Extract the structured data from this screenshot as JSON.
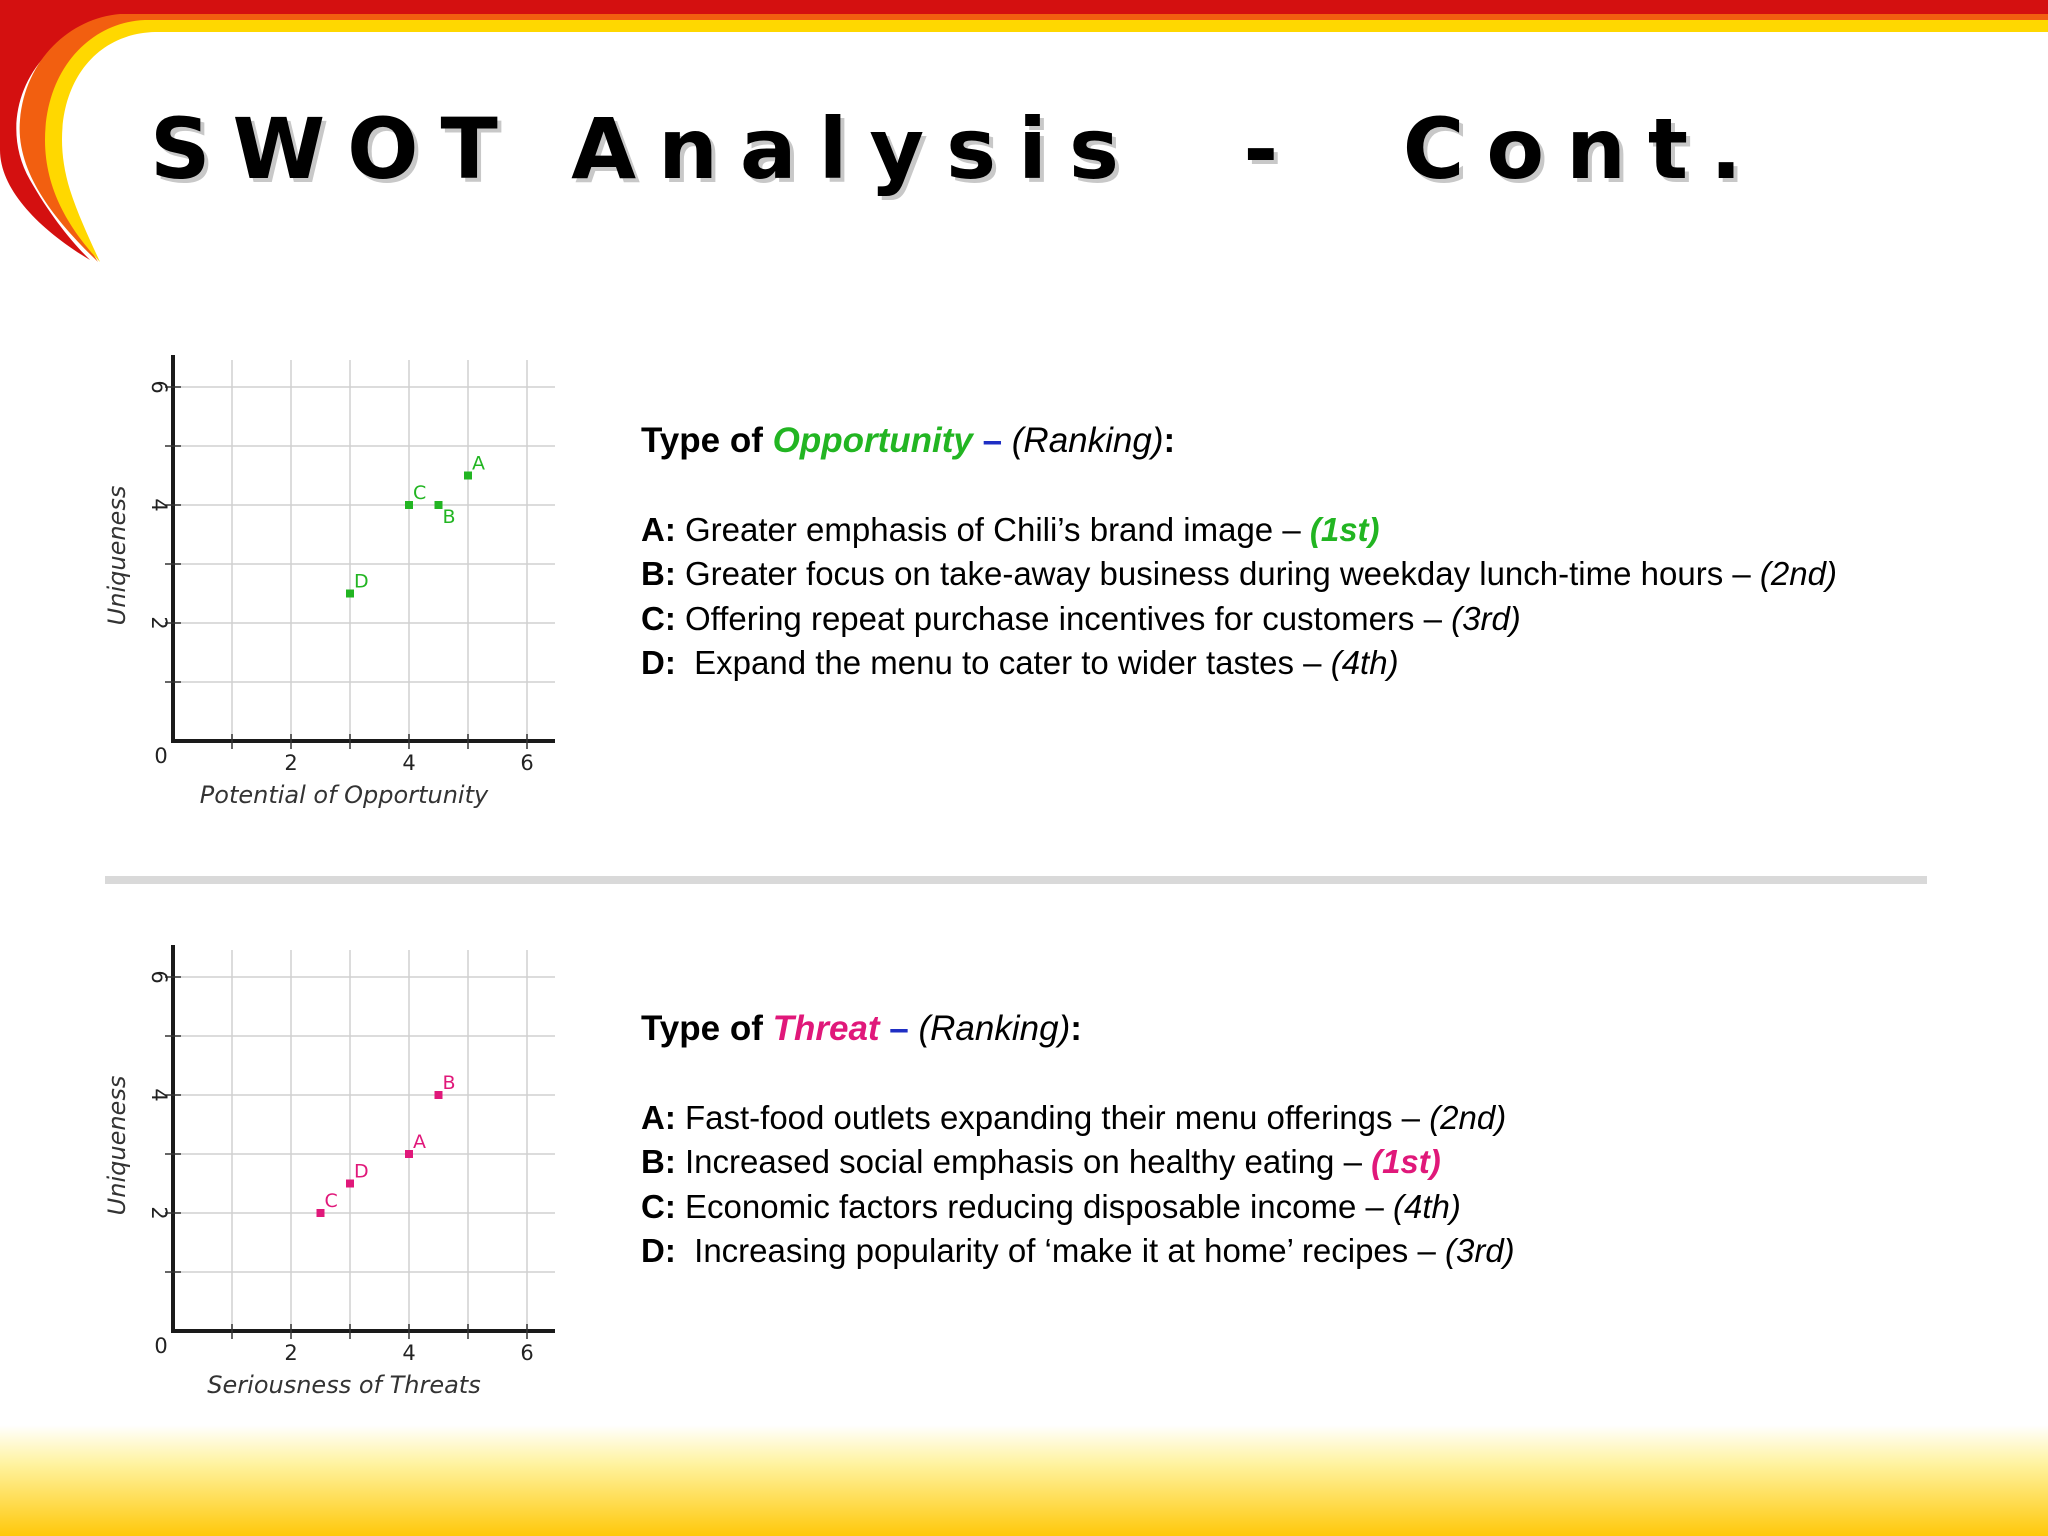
{
  "title": "SWOT Analysis  -  Cont.",
  "colors": {
    "opportunity": "#22b522",
    "threat": "#e0187a",
    "dash": "#1f2fc4",
    "banner_red": "#d41010",
    "banner_orange": "#f25f10",
    "banner_yellow": "#ffd800"
  },
  "opportunity": {
    "heading": {
      "prefix": "Type of",
      "keyword": "Opportunity",
      "dash": "–",
      "ranking": "(Ranking)",
      "colon": ":"
    },
    "items": [
      {
        "letter": "A:",
        "text": "Greater emphasis of Chili’s brand image –",
        "rank": "(1st)",
        "highlight": true
      },
      {
        "letter": "B:",
        "text": "Greater focus on take-away business during weekday lunch-time hours –",
        "rank": "(2nd)",
        "highlight": false
      },
      {
        "letter": "C:",
        "text": "Offering repeat purchase incentives for customers –",
        "rank": "(3rd)",
        "highlight": false
      },
      {
        "letter": "D:",
        "text": " Expand the menu to cater to wider tastes –",
        "rank": "(4th)",
        "highlight": false
      }
    ]
  },
  "threat": {
    "heading": {
      "prefix": "Type of",
      "keyword": "Threat",
      "dash": "–",
      "ranking": "(Ranking)",
      "colon": ":"
    },
    "items": [
      {
        "letter": "A:",
        "text": "Fast-food outlets expanding their menu offerings –",
        "rank": "(2nd)",
        "highlight": false
      },
      {
        "letter": "B:",
        "text": "Increased social emphasis on healthy eating –",
        "rank": "(1st)",
        "highlight": true
      },
      {
        "letter": "C:",
        "text": "Economic factors reducing disposable income –",
        "rank": "(4th)",
        "highlight": false
      },
      {
        "letter": "D:",
        "text": " Increasing popularity of ‘make it at home’ recipes –",
        "rank": "(3rd)",
        "highlight": false
      }
    ]
  },
  "chart_data": [
    {
      "type": "scatter",
      "xlabel": "Potential of Opportunity",
      "ylabel": "Uniqueness",
      "xlim": [
        0,
        6.5
      ],
      "ylim": [
        0,
        6.5
      ],
      "x_ticks": [
        2,
        4,
        6
      ],
      "y_ticks": [
        2,
        4,
        6
      ],
      "origin_label": "0",
      "grid": true,
      "color": "#22b522",
      "points": [
        {
          "label": "A",
          "x": 5,
          "y": 4.5
        },
        {
          "label": "B",
          "x": 4.5,
          "y": 4
        },
        {
          "label": "C",
          "x": 4,
          "y": 4
        },
        {
          "label": "D",
          "x": 3,
          "y": 2.5
        }
      ]
    },
    {
      "type": "scatter",
      "xlabel": "Seriousness of Threats",
      "ylabel": "Uniqueness",
      "xlim": [
        0,
        6.5
      ],
      "ylim": [
        0,
        6.5
      ],
      "x_ticks": [
        2,
        4,
        6
      ],
      "y_ticks": [
        2,
        4,
        6
      ],
      "origin_label": "0",
      "grid": true,
      "color": "#e0187a",
      "points": [
        {
          "label": "A",
          "x": 4,
          "y": 3
        },
        {
          "label": "B",
          "x": 4.5,
          "y": 4
        },
        {
          "label": "C",
          "x": 2.5,
          "y": 2
        },
        {
          "label": "D",
          "x": 3,
          "y": 2.5
        }
      ]
    }
  ]
}
